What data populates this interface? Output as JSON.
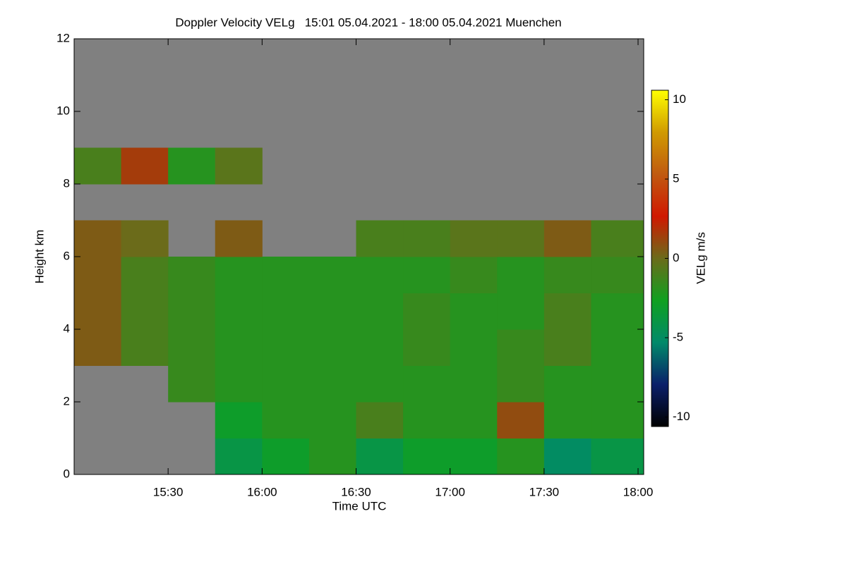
{
  "chart_data": {
    "type": "heatmap",
    "title": "Doppler Velocity VELg   15:01 05.04.2021 - 18:00 05.04.2021 Muenchen",
    "x_label": "Time UTC",
    "y_label": "Height km",
    "colorbar_label": "VELg m/s",
    "background": "#808080",
    "xlim": [
      15.0,
      18.03
    ],
    "xticks": [
      {
        "value": 15.5,
        "label": "15:30"
      },
      {
        "value": 16,
        "label": "16:00"
      },
      {
        "value": 16.5,
        "label": "16:30"
      },
      {
        "value": 17,
        "label": "17:00"
      },
      {
        "value": 17.5,
        "label": "17:30"
      },
      {
        "value": 18,
        "label": "18:00"
      }
    ],
    "ylim": [
      0,
      12
    ],
    "yticks": [
      0,
      2,
      4,
      6,
      8,
      10,
      12
    ],
    "zlim": [
      -10.6,
      10.6
    ],
    "zticks": [
      -10,
      -5,
      0,
      5,
      10
    ],
    "colormap": [
      "#000000",
      "#0a1f6a",
      "#008a6a",
      "#10a020",
      "#6b6b1a",
      "#d01800",
      "#c05a10",
      "#d09a00",
      "#ffff00"
    ],
    "x": [
      15.0,
      15.25,
      15.5,
      15.75,
      16.0,
      16.25,
      16.5,
      16.75,
      17.0,
      17.25,
      17.5,
      17.75,
      18.03
    ],
    "y": [
      0,
      1,
      2,
      3,
      4,
      5,
      6,
      7,
      8,
      9,
      10,
      11,
      12
    ],
    "z": [
      [
        null,
        null,
        null,
        -4,
        -3,
        -2,
        -4,
        -3,
        -3,
        -2,
        -5,
        -4
      ],
      [
        null,
        null,
        null,
        -3,
        -2,
        -2,
        -1,
        -2,
        -2,
        1,
        -2,
        -2
      ],
      [
        null,
        null,
        -1.5,
        -2,
        -2,
        -2,
        -2,
        -2,
        -2,
        -1.5,
        -2,
        -2
      ],
      [
        0.5,
        -1,
        -1.5,
        -2,
        -2,
        -2,
        -2,
        -1.5,
        -2,
        -1.5,
        -1,
        -2
      ],
      [
        0.5,
        -1,
        -1.5,
        -2,
        -2,
        -2,
        -2,
        -1.5,
        -2,
        -2,
        -1,
        -2
      ],
      [
        0.5,
        -1,
        -1.5,
        -2,
        -2,
        -2,
        -2,
        -2,
        -1.5,
        -2,
        -1.5,
        -1.5
      ],
      [
        0.5,
        0,
        null,
        0.5,
        null,
        null,
        -1,
        -1,
        -0.5,
        -0.5,
        0.5,
        -1
      ],
      [
        null,
        null,
        null,
        null,
        null,
        null,
        null,
        null,
        null,
        null,
        null,
        null
      ],
      [
        -1,
        1.5,
        -2,
        -0.5,
        null,
        null,
        null,
        null,
        null,
        null,
        null,
        null
      ],
      [
        null,
        null,
        null,
        null,
        null,
        null,
        null,
        null,
        null,
        null,
        null,
        null
      ],
      [
        null,
        null,
        null,
        null,
        null,
        null,
        null,
        null,
        null,
        null,
        null,
        null
      ],
      [
        null,
        null,
        null,
        null,
        null,
        null,
        null,
        null,
        null,
        null,
        null,
        null
      ]
    ]
  }
}
